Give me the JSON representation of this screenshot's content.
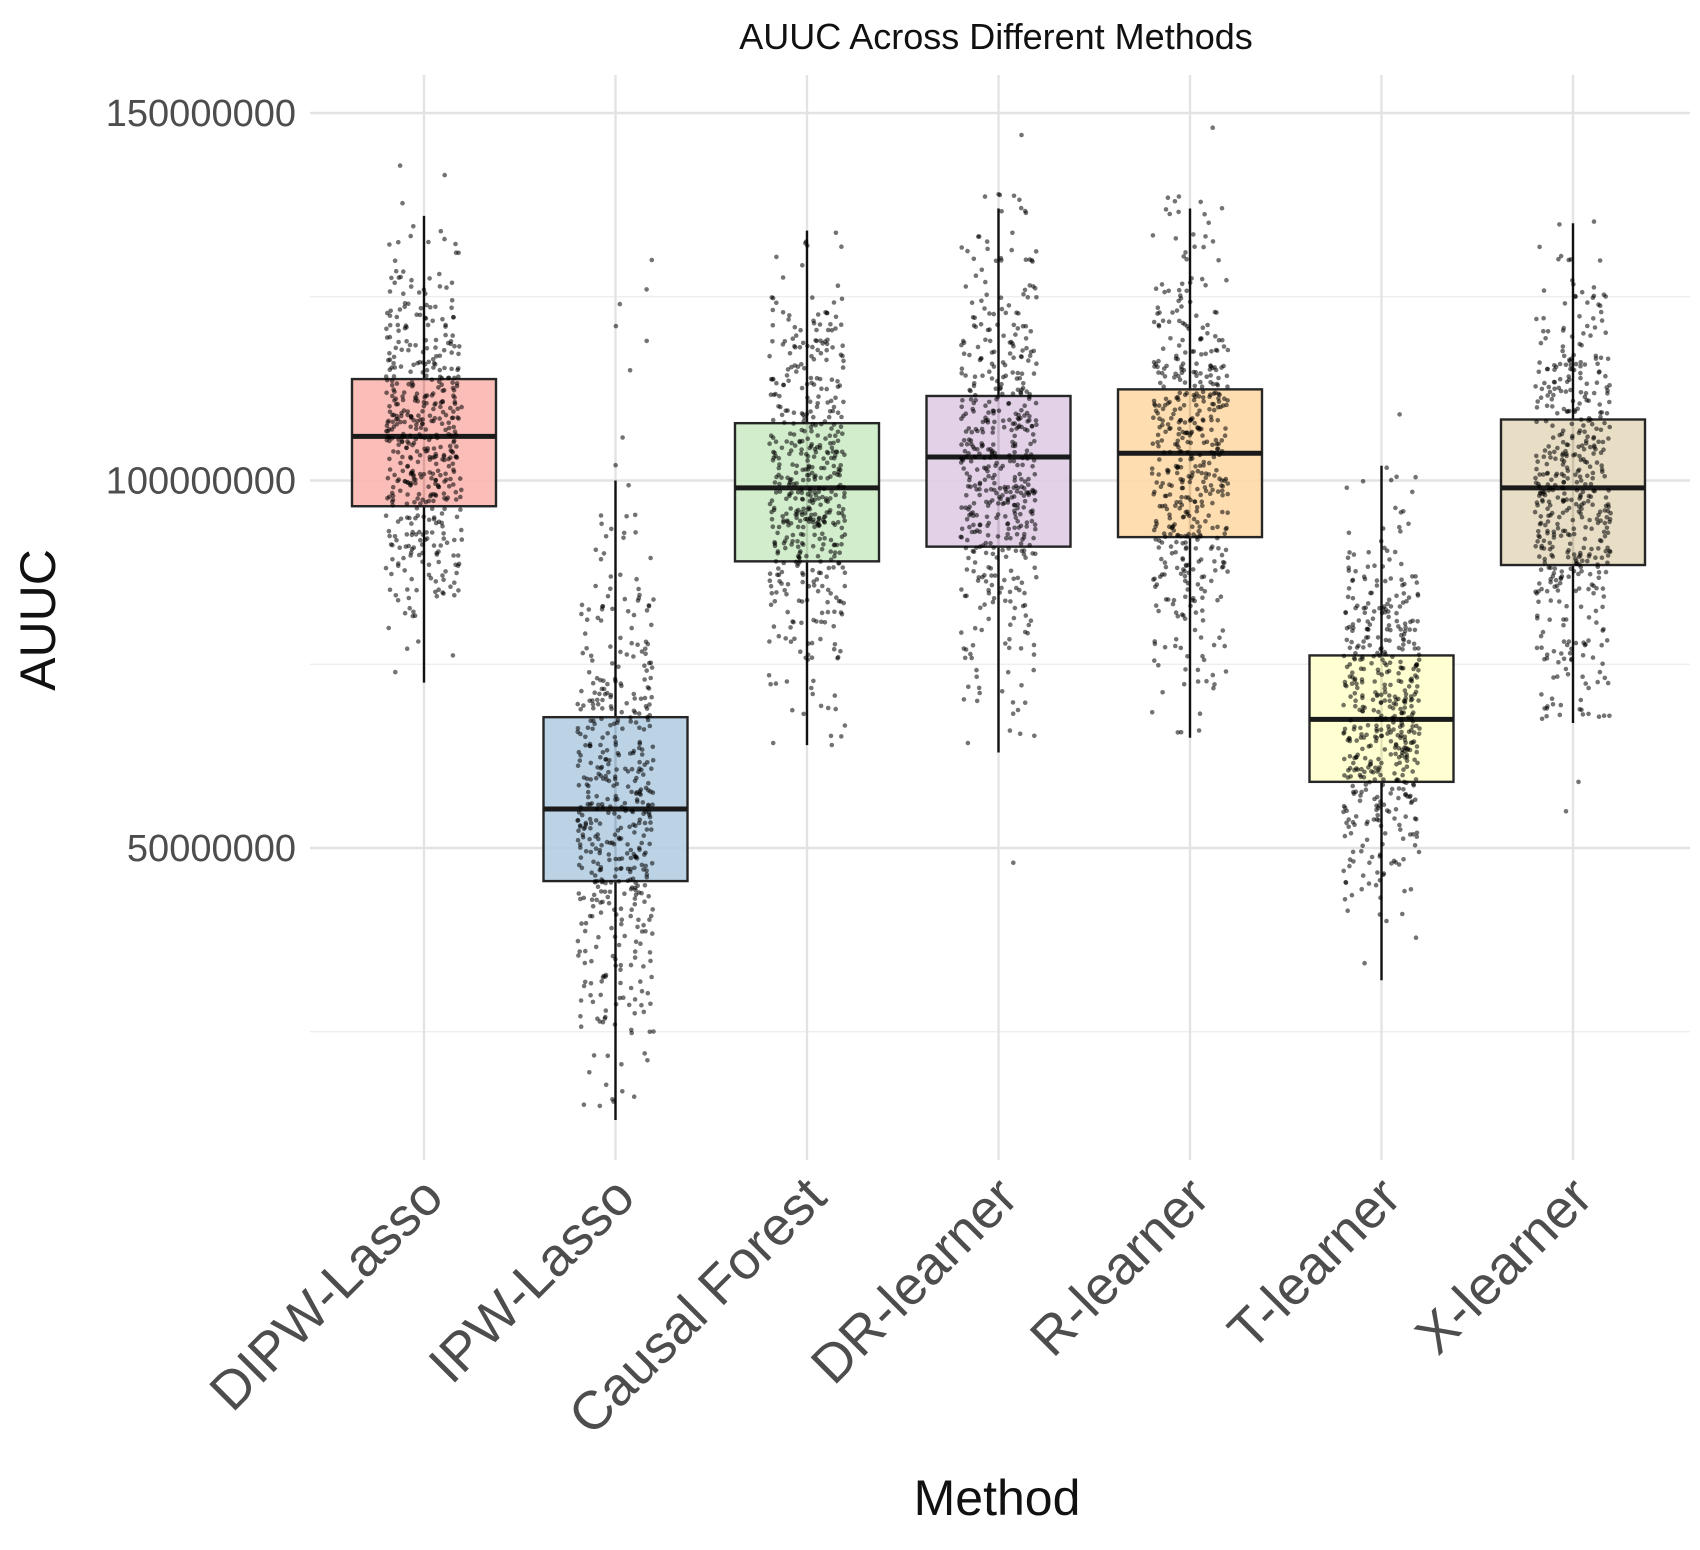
{
  "chart_data": {
    "type": "box",
    "title": "AUUC Across Different Methods",
    "xlabel": "Method",
    "ylabel": "AUUC",
    "ylim": [
      7000000,
      155000000
    ],
    "yticks": [
      50000000,
      100000000,
      150000000
    ],
    "ytick_labels": [
      "50000000",
      "100000000",
      "150000000"
    ],
    "y_minor_ticks": [
      25000000,
      75000000,
      125000000
    ],
    "grid": true,
    "points_per_method": 500,
    "series": [
      {
        "name": "DIPW-Lasso",
        "color": "#FBB4AE",
        "q1": 96500000,
        "median": 106000000,
        "q3": 113800000,
        "whisker_low": 72500000,
        "whisker_high": 136000000,
        "point_min": 68000000,
        "point_max": 144000000,
        "outliers": []
      },
      {
        "name": "IPW-Lasso",
        "color": "#B3CDE3",
        "q1": 45500000,
        "median": 55300000,
        "q3": 67800000,
        "whisker_low": 13000000,
        "whisker_high": 100000000,
        "point_min": 13000000,
        "point_max": 109000000,
        "outliers": [
          115000000,
          119000000,
          121000000,
          124000000,
          126000000,
          130000000
        ]
      },
      {
        "name": "Causal Forest",
        "color": "#CCEBC5",
        "q1": 89000000,
        "median": 99000000,
        "q3": 107800000,
        "whisker_low": 64000000,
        "whisker_high": 134000000,
        "point_min": 64000000,
        "point_max": 134000000,
        "outliers": []
      },
      {
        "name": "DR-learner",
        "color": "#DECBE4",
        "q1": 91000000,
        "median": 103200000,
        "q3": 111500000,
        "whisker_low": 63000000,
        "whisker_high": 137000000,
        "point_min": 63000000,
        "point_max": 139000000,
        "outliers": [
          48000000,
          147000000
        ]
      },
      {
        "name": "R-learner",
        "color": "#FED9A6",
        "q1": 92300000,
        "median": 103700000,
        "q3": 112400000,
        "whisker_low": 65000000,
        "whisker_high": 137000000,
        "point_min": 65000000,
        "point_max": 139000000,
        "outliers": [
          148000000
        ]
      },
      {
        "name": "T-learner",
        "color": "#FFFFCC",
        "q1": 59000000,
        "median": 67500000,
        "q3": 76200000,
        "whisker_low": 32000000,
        "whisker_high": 102000000,
        "point_min": 32000000,
        "point_max": 104000000,
        "outliers": [
          109000000
        ]
      },
      {
        "name": "X-learner",
        "color": "#E5D8BD",
        "q1": 88500000,
        "median": 99000000,
        "q3": 108300000,
        "whisker_low": 67000000,
        "whisker_high": 135000000,
        "point_min": 67000000,
        "point_max": 137000000,
        "outliers": [
          55000000,
          59000000
        ]
      }
    ]
  }
}
